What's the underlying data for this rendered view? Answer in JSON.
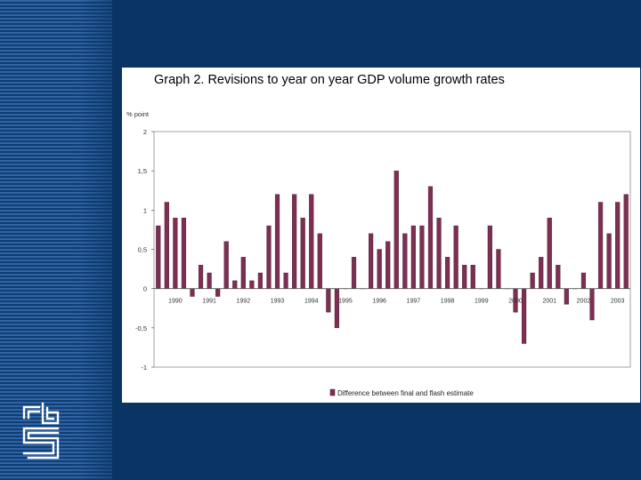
{
  "colors": {
    "background": "#0a3463",
    "bar": "#7d2f52",
    "bar_stroke": "#4a1630",
    "plot_frame": "#8a8a8a",
    "logo": "#ffffff"
  },
  "logo": {
    "icon": "cbs-logo-icon"
  },
  "chart_data": {
    "type": "bar",
    "title": "Graph 2. Revisions to year on year GDP volume growth rates",
    "ylabel": "% point",
    "xlabel": "",
    "ylim": [
      -1,
      2
    ],
    "yticks": [
      2,
      1.5,
      1,
      0.5,
      0,
      -0.5,
      -1
    ],
    "ytick_labels": [
      "2",
      "1,5",
      "1",
      "0,5",
      "0",
      "-0,5",
      "-1"
    ],
    "gridlines": false,
    "legend": {
      "position": "bottom-right",
      "label": "Difference between final and flash estimate"
    },
    "year_labels": [
      {
        "label": "1990",
        "index": 2
      },
      {
        "label": "1991",
        "index": 6
      },
      {
        "label": "1992",
        "index": 10
      },
      {
        "label": "1993",
        "index": 14
      },
      {
        "label": "1994",
        "index": 18
      },
      {
        "label": "1995",
        "index": 22
      },
      {
        "label": "1996",
        "index": 26
      },
      {
        "label": "1997",
        "index": 30
      },
      {
        "label": "1998",
        "index": 34
      },
      {
        "label": "1999",
        "index": 38
      },
      {
        "label": "2000",
        "index": 42
      },
      {
        "label": "2001",
        "index": 46
      },
      {
        "label": "2002",
        "index": 50
      },
      {
        "label": "2003",
        "index": 54
      }
    ],
    "series": [
      {
        "name": "Difference between final and flash estimate",
        "values": [
          0.8,
          1.1,
          0.9,
          0.9,
          -0.1,
          0.3,
          0.2,
          -0.1,
          0.6,
          0.1,
          0.4,
          0.1,
          0.2,
          0.8,
          1.2,
          0.2,
          1.2,
          0.9,
          1.2,
          0.7,
          -0.3,
          -0.5,
          0.0,
          0.4,
          0.0,
          0.7,
          0.5,
          0.6,
          1.5,
          0.7,
          0.8,
          0.8,
          1.3,
          0.9,
          0.4,
          0.8,
          0.3,
          0.3,
          0.0,
          0.8,
          0.5,
          0.0,
          -0.3,
          -0.7,
          0.2,
          0.4,
          0.9,
          0.3,
          -0.2,
          0.0,
          0.2,
          -0.4,
          1.1,
          0.7,
          1.1,
          1.2
        ]
      }
    ]
  }
}
